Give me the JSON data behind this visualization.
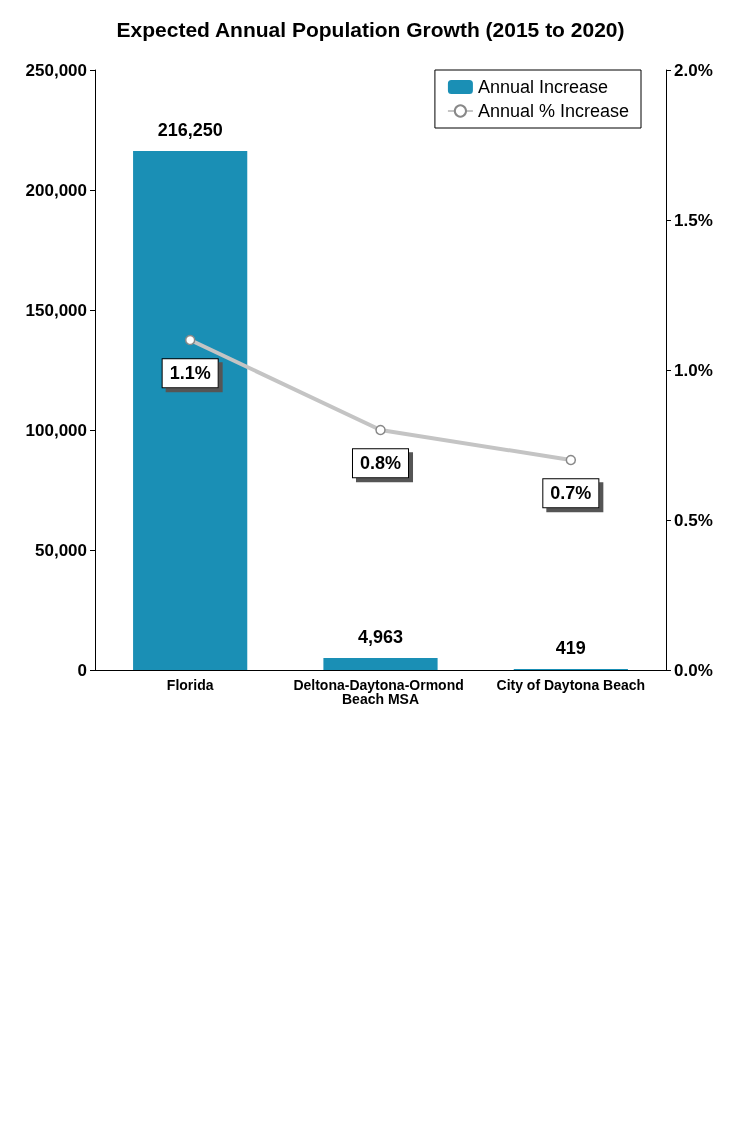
{
  "chart_data": {
    "type": "bar",
    "title": "Expected Annual Population Growth (2015 to 2020)",
    "categories": [
      "Florida",
      "Deltona-Daytona-Ormond Beach MSA",
      "City of Daytona Beach"
    ],
    "series": [
      {
        "name": "Annual Increase",
        "color": "#1a8fb5",
        "values": [
          216250,
          4963,
          419
        ],
        "value_labels": [
          "216,250",
          "4,963",
          "419"
        ]
      },
      {
        "name": "Annual % Increase",
        "type": "line",
        "axis": "y2",
        "color": "#c4c4c4",
        "marker": "circle",
        "values": [
          1.1,
          0.8,
          0.7
        ],
        "value_labels": [
          "1.1%",
          "0.8%",
          "0.7%"
        ]
      }
    ],
    "ylim": [
      0,
      250000
    ],
    "yticks": [
      {
        "value": 0,
        "label": "0"
      },
      {
        "value": 50000,
        "label": "50,000"
      },
      {
        "value": 100000,
        "label": "100,000"
      },
      {
        "value": 150000,
        "label": "150,000"
      },
      {
        "value": 200000,
        "label": "200,000"
      },
      {
        "value": 250000,
        "label": "250,000"
      }
    ],
    "y2lim": [
      0,
      2
    ],
    "y2ticks": [
      {
        "value": 0,
        "label": "0.0%"
      },
      {
        "value": 0.5,
        "label": "0.5%"
      },
      {
        "value": 1,
        "label": "1.0%"
      },
      {
        "value": 1.5,
        "label": "1.5%"
      },
      {
        "value": 2,
        "label": "2.0%"
      }
    ],
    "grid": false,
    "legend": "top right"
  }
}
